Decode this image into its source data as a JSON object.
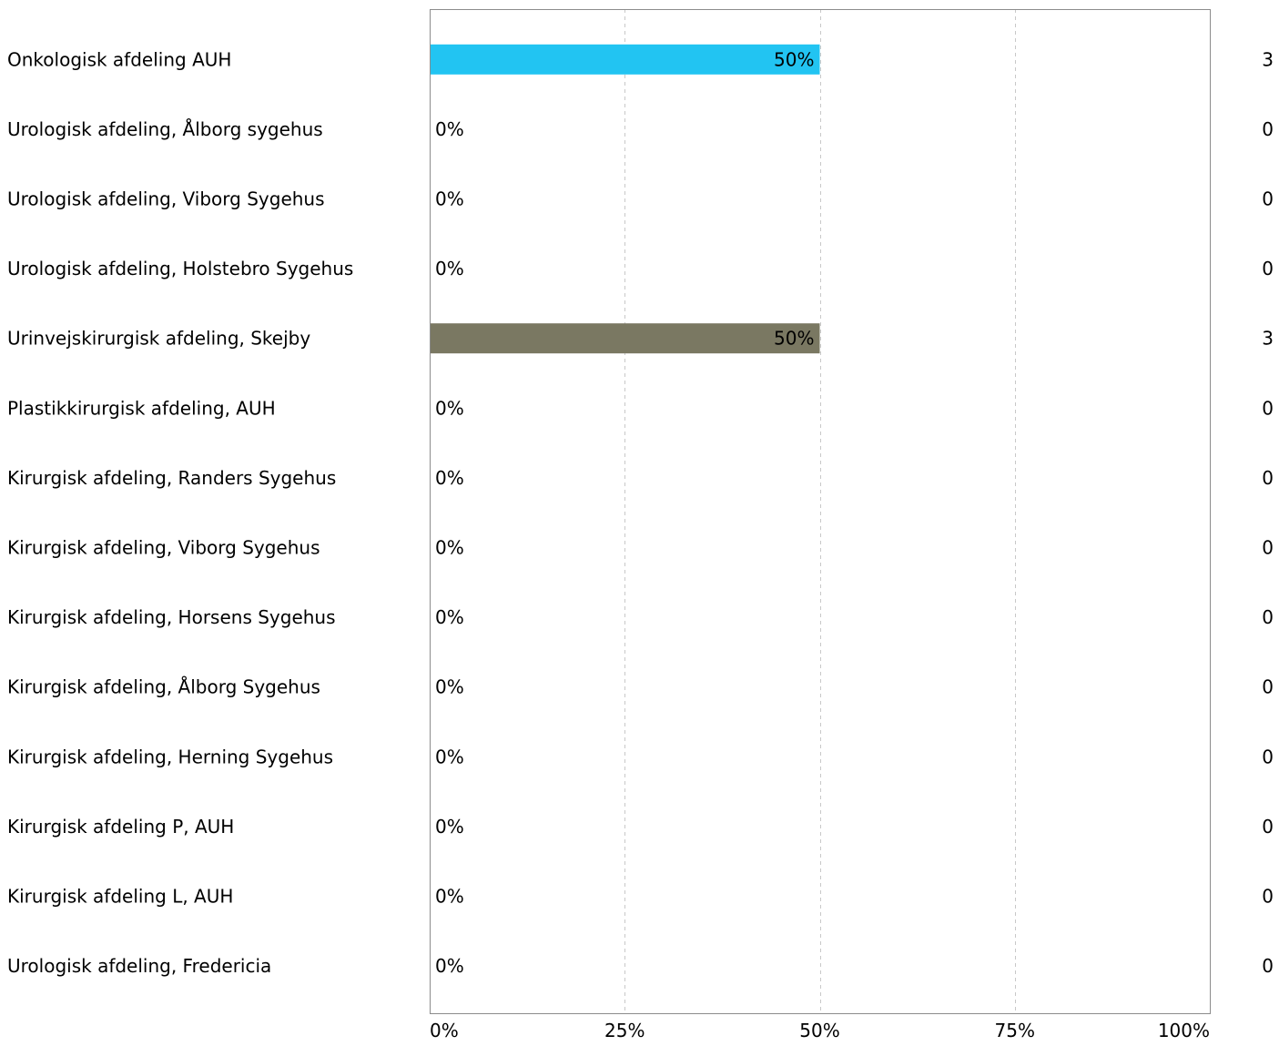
{
  "chart_data": {
    "type": "bar",
    "orientation": "horizontal",
    "categories": [
      "Onkologisk afdeling AUH",
      "Urologisk afdeling, Ålborg sygehus",
      "Urologisk afdeling, Viborg Sygehus",
      "Urologisk afdeling, Holstebro Sygehus",
      "Urinvejskirurgisk afdeling, Skejby",
      "Plastikkirurgisk afdeling, AUH",
      "Kirurgisk afdeling, Randers Sygehus",
      "Kirurgisk afdeling, Viborg Sygehus",
      "Kirurgisk afdeling, Horsens Sygehus",
      "Kirurgisk afdeling, Ålborg Sygehus",
      "Kirurgisk afdeling, Herning Sygehus",
      "Kirurgisk afdeling P, AUH",
      "Kirurgisk afdeling L, AUH",
      "Urologisk afdeling, Fredericia"
    ],
    "values": [
      50,
      0,
      0,
      0,
      50,
      0,
      0,
      0,
      0,
      0,
      0,
      0,
      0,
      0
    ],
    "value_labels": [
      "50%",
      "0%",
      "0%",
      "0%",
      "50%",
      "0%",
      "0%",
      "0%",
      "0%",
      "0%",
      "0%",
      "0%",
      "0%",
      "0%"
    ],
    "counts": [
      "3",
      "0",
      "0",
      "0",
      "3",
      "0",
      "0",
      "0",
      "0",
      "0",
      "0",
      "0",
      "0",
      "0"
    ],
    "colors": [
      "#22c4f2",
      "#1f4e79",
      "#1f4e79",
      "#1f4e79",
      "#7a7862",
      "#1f4e79",
      "#1f4e79",
      "#1f4e79",
      "#1f4e79",
      "#1f4e79",
      "#1f4e79",
      "#1f4e79",
      "#1f4e79",
      "#1f4e79"
    ],
    "xlim": [
      0,
      100
    ],
    "xticks": [
      0,
      25,
      50,
      75,
      100
    ],
    "xtick_labels": [
      "0%",
      "25%",
      "50%",
      "75%",
      "100%"
    ],
    "grid": true,
    "title": "",
    "xlabel": "",
    "ylabel": ""
  }
}
